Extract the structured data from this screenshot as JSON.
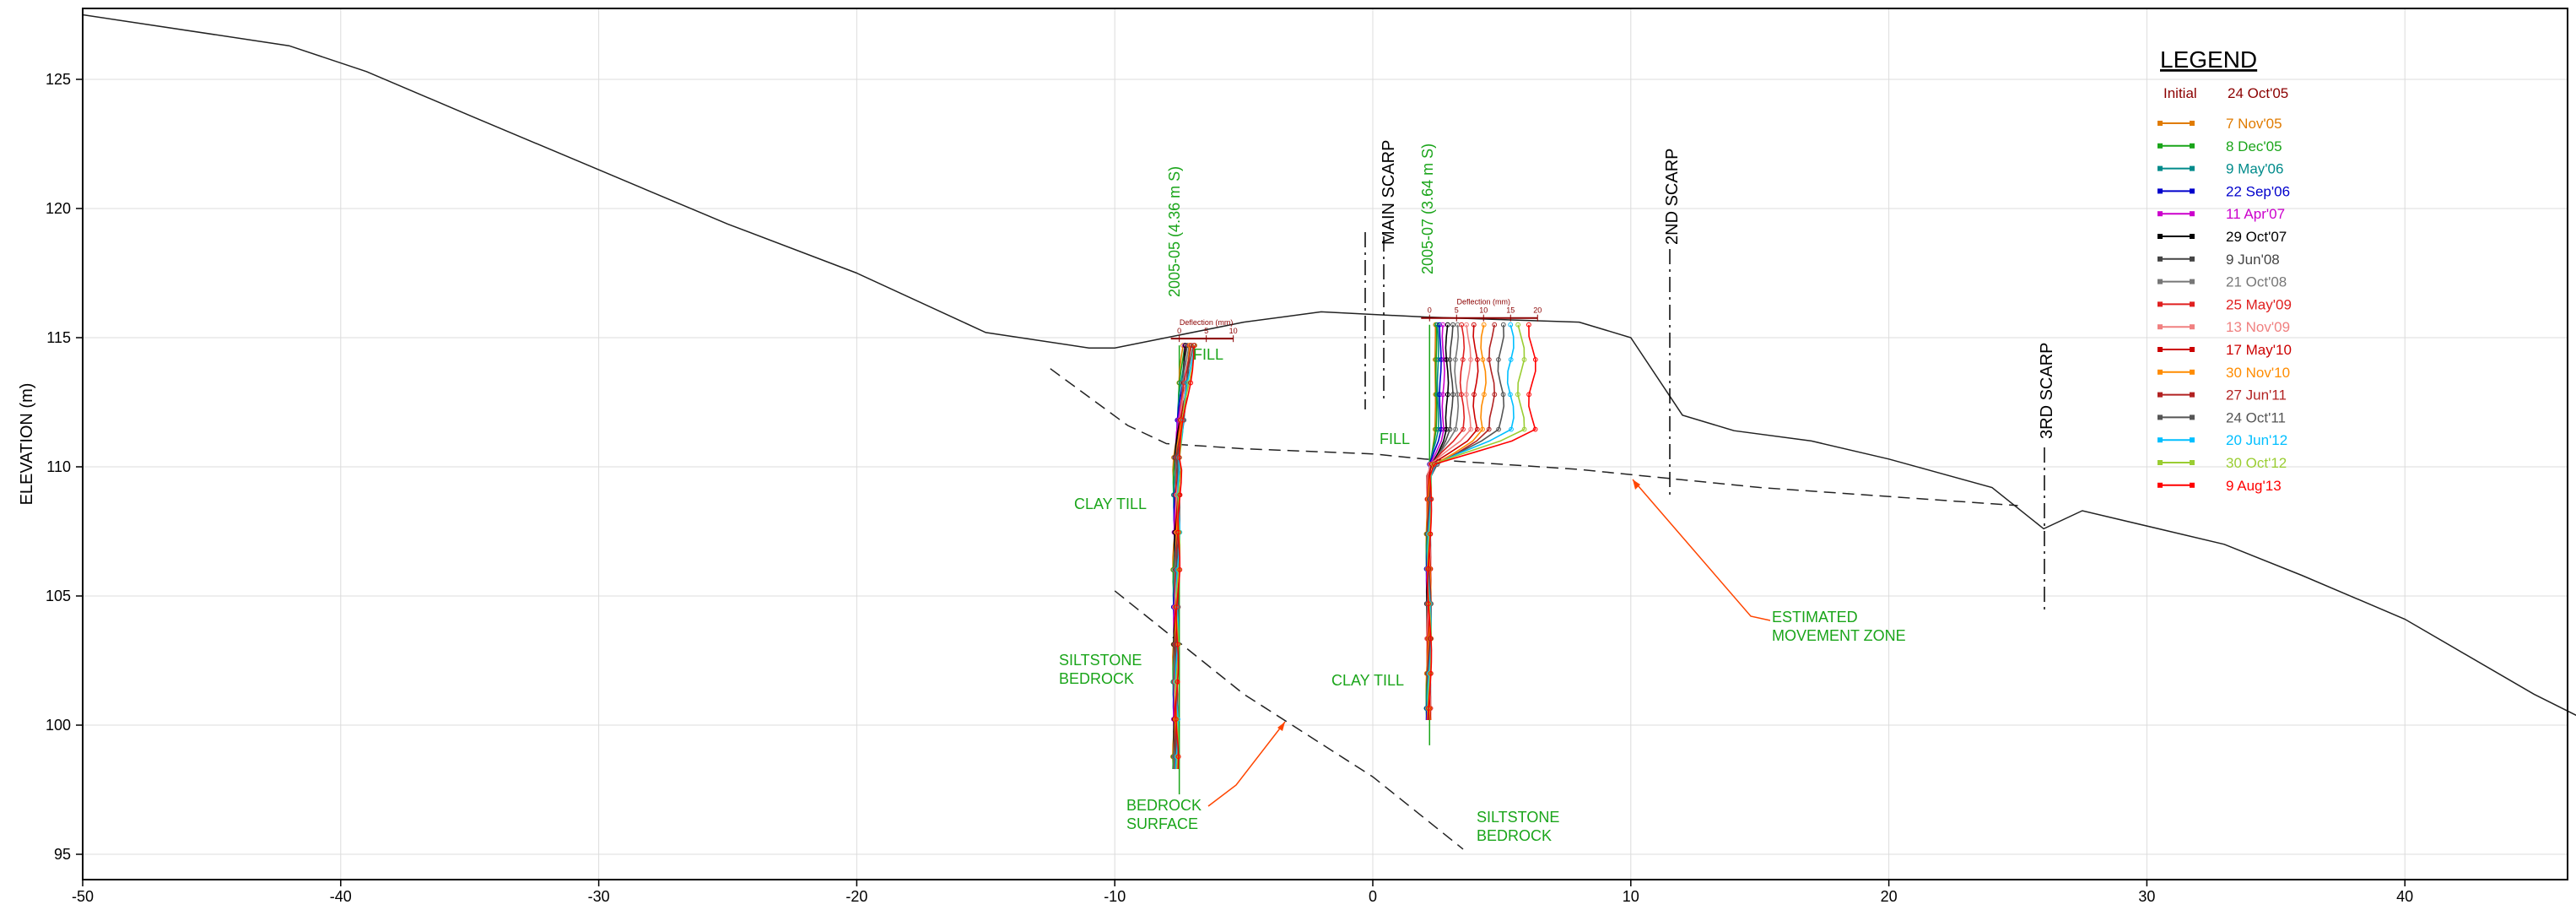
{
  "axes": {
    "y_label": "ELEVATION (m)",
    "x_ticks": [
      "-50",
      "-40",
      "-30",
      "-20",
      "-10",
      "0",
      "10",
      "20",
      "30",
      "40"
    ],
    "y_ticks": [
      "125",
      "120",
      "115",
      "110",
      "105",
      "100",
      "95"
    ]
  },
  "profiles": {
    "ground_surface": [
      [
        -50,
        127.5
      ],
      [
        -42,
        126.3
      ],
      [
        -39,
        125.3
      ],
      [
        -35,
        123.6
      ],
      [
        -30,
        121.5
      ],
      [
        -25,
        119.4
      ],
      [
        -20,
        117.5
      ],
      [
        -15,
        115.2
      ],
      [
        -11,
        114.6
      ],
      [
        -10,
        114.6
      ],
      [
        -8,
        115.0
      ],
      [
        -5,
        115.6
      ],
      [
        -2,
        116.0
      ],
      [
        0,
        115.9
      ],
      [
        2,
        115.8
      ],
      [
        5,
        115.7
      ],
      [
        8,
        115.6
      ],
      [
        10,
        115.0
      ],
      [
        12,
        112.0
      ],
      [
        14,
        111.4
      ],
      [
        17,
        111.0
      ],
      [
        20,
        110.3
      ],
      [
        24,
        109.2
      ],
      [
        26,
        107.6
      ],
      [
        27.5,
        108.3
      ],
      [
        33,
        107.0
      ],
      [
        36,
        105.8
      ],
      [
        40,
        104.1
      ],
      [
        45,
        101.2
      ],
      [
        47,
        100.2
      ]
    ],
    "slip_surface": [
      [
        -12.5,
        113.8
      ],
      [
        -9.5,
        111.6
      ],
      [
        -8,
        110.9
      ],
      [
        -5,
        110.7
      ],
      [
        0,
        110.5
      ],
      [
        2,
        110.3
      ],
      [
        8,
        109.9
      ],
      [
        15,
        109.2
      ],
      [
        25,
        108.5
      ]
    ],
    "bedrock_surface": [
      [
        -10,
        105.2
      ],
      [
        -5,
        101.2
      ],
      [
        0,
        98.0
      ],
      [
        3.5,
        95.2
      ]
    ]
  },
  "labels": {
    "fill_left": "FILL",
    "fill_right": "FILL",
    "clay_till_left": "CLAY TILL",
    "clay_till_right": "CLAY TILL",
    "siltstone_left": "SILTSTONE BEDROCK",
    "siltstone_right": "SILTSTONE BEDROCK",
    "bedrock_surface": "BEDROCK SURFACE",
    "movement_zone": "ESTIMATED MOVEMENT ZONE",
    "main_scarp": "MAIN SCARP",
    "second_scarp": "2ND SCARP",
    "third_scarp": "3RD SCARP",
    "inclinometer_left": "2005-05 (4.36 m S)",
    "inclinometer_right": "2005-07 (3.64 m S)",
    "deflection_title": "Deflection (mm)",
    "deflection_ticks_left": [
      "0",
      "5",
      "10"
    ],
    "deflection_ticks_right": [
      "0",
      "5",
      "10",
      "15",
      "20"
    ]
  },
  "inclinometers": [
    {
      "name": "2005-05",
      "x_offset": -7.5,
      "top_elev": 114.7,
      "bottom_elev": 98.3
    },
    {
      "name": "2005-07",
      "x_offset": 2.2,
      "top_elev": 115.5,
      "bottom_elev": 100.2
    }
  ],
  "legend": {
    "title": "LEGEND",
    "initial_label": "Initial",
    "initial_date": "24 Oct'05",
    "initial_color": "#8b0000",
    "entries": [
      {
        "label": "7 Nov'05",
        "color": "#e07b00"
      },
      {
        "label": "8 Dec'05",
        "color": "#1aa51a"
      },
      {
        "label": "9 May'06",
        "color": "#008b8b"
      },
      {
        "label": "22 Sep'06",
        "color": "#0000cc"
      },
      {
        "label": "11 Apr'07",
        "color": "#cc00cc"
      },
      {
        "label": "29 Oct'07",
        "color": "#000000"
      },
      {
        "label": "9 Jun'08",
        "color": "#444444"
      },
      {
        "label": "21 Oct'08",
        "color": "#777777"
      },
      {
        "label": "25 May'09",
        "color": "#e02020"
      },
      {
        "label": "13 Nov'09",
        "color": "#f08080"
      },
      {
        "label": "17 May'10",
        "color": "#cc0000"
      },
      {
        "label": "30 Nov'10",
        "color": "#ff8c00"
      },
      {
        "label": "27 Jun'11",
        "color": "#b22222"
      },
      {
        "label": "24 Oct'11",
        "color": "#555555"
      },
      {
        "label": "20 Jun'12",
        "color": "#00bfff"
      },
      {
        "label": "30 Oct'12",
        "color": "#9acd32"
      },
      {
        "label": "9 Aug'13",
        "color": "#ff0000"
      }
    ]
  },
  "colors": {
    "axis": "#000000",
    "grid": "#dcdcdc",
    "label_green": "#1aa51a",
    "annotation_orange": "#ff4500",
    "deflection_red": "#8b0000"
  }
}
